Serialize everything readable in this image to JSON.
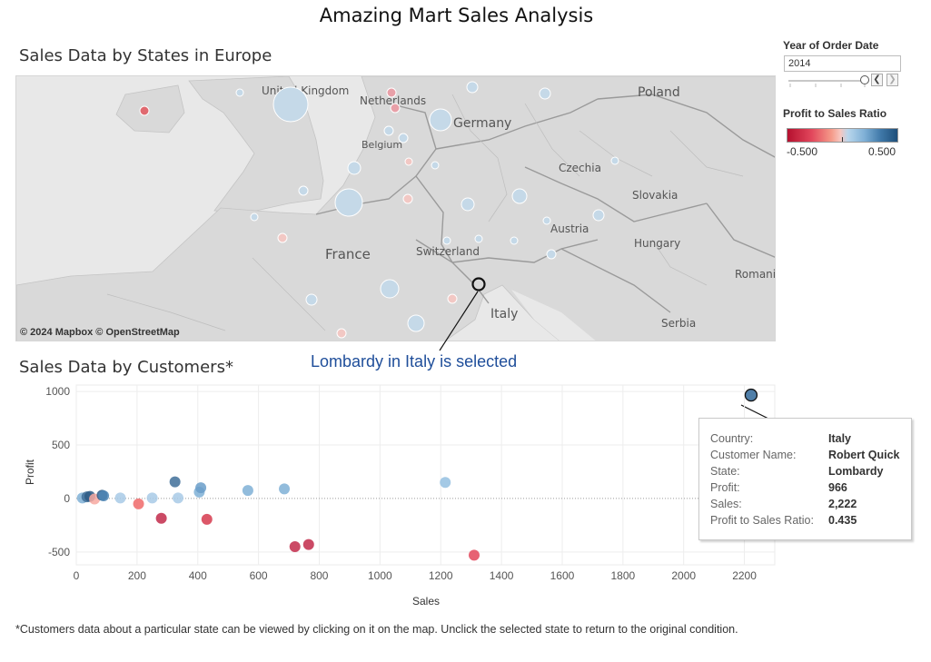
{
  "dashboard": {
    "title": "Amazing Mart Sales Analysis",
    "footnote": "*Customers data about a particular state can be viewed by clicking on it on the map. Unclick the selected state to return to the original condition."
  },
  "map": {
    "title": "Sales Data by States in Europe",
    "attribution": "© 2024 Mapbox  © OpenStreetMap",
    "labels": [
      "United Kingdom",
      "Netherlands",
      "Belgium",
      "Germany",
      "Poland",
      "Czechia",
      "Slovakia",
      "France",
      "Switzerland",
      "Austria",
      "Hungary",
      "Italy",
      "Serbia",
      "Romania"
    ],
    "selected_state": "Lombardy"
  },
  "annotation": "Lombardy in Italy is selected",
  "filters": {
    "year_label": "Year of Order Date",
    "year_value": "2014",
    "prev_icon": "chevron-left-icon",
    "next_icon": "chevron-right-icon"
  },
  "legend": {
    "title": "Profit to Sales Ratio",
    "min": "-0.500",
    "max": "0.500",
    "colors": {
      "negative": "#b5102f",
      "neutral": "#dfe8ef",
      "positive": "#1e4f7a"
    }
  },
  "customers": {
    "title": "Sales Data by Customers*"
  },
  "tooltip": {
    "rows": [
      {
        "key": "Country:",
        "value": "Italy"
      },
      {
        "key": "Customer Name:",
        "value": "Robert Quick"
      },
      {
        "key": "State:",
        "value": "Lombardy"
      },
      {
        "key": "Profit:",
        "value": "966"
      },
      {
        "key": "Sales:",
        "value": "2,222"
      },
      {
        "key": "Profit to Sales Ratio:",
        "value": "0.435"
      }
    ]
  },
  "chart_data": {
    "type": "scatter",
    "xlabel": "Sales",
    "ylabel": "Profit",
    "xlim": [
      0,
      2300
    ],
    "ylim": [
      -620,
      1060
    ],
    "xticks": [
      0,
      200,
      400,
      600,
      800,
      1000,
      1200,
      1400,
      1600,
      1800,
      2000,
      2200
    ],
    "yticks": [
      -500,
      0,
      500,
      1000
    ],
    "grid": true,
    "points": [
      {
        "x": 20,
        "y": 5,
        "color": "#7fb0d6"
      },
      {
        "x": 35,
        "y": 15,
        "color": "#3f6f99"
      },
      {
        "x": 45,
        "y": 20,
        "color": "#2d5b85"
      },
      {
        "x": 60,
        "y": -5,
        "color": "#f7a8a0"
      },
      {
        "x": 85,
        "y": 30,
        "color": "#2d5b85"
      },
      {
        "x": 90,
        "y": 25,
        "color": "#4f86b5"
      },
      {
        "x": 145,
        "y": 5,
        "color": "#a8cae6"
      },
      {
        "x": 205,
        "y": -50,
        "color": "#f06a6a"
      },
      {
        "x": 250,
        "y": 5,
        "color": "#a8cae6"
      },
      {
        "x": 280,
        "y": -185,
        "color": "#c22a4a"
      },
      {
        "x": 325,
        "y": 155,
        "color": "#3f6f99"
      },
      {
        "x": 335,
        "y": 5,
        "color": "#a8cae6"
      },
      {
        "x": 405,
        "y": 60,
        "color": "#7fb0d6"
      },
      {
        "x": 410,
        "y": 100,
        "color": "#6a9ec9"
      },
      {
        "x": 430,
        "y": -195,
        "color": "#d63a4e"
      },
      {
        "x": 565,
        "y": 75,
        "color": "#7fb0d6"
      },
      {
        "x": 685,
        "y": 90,
        "color": "#7fb0d6"
      },
      {
        "x": 720,
        "y": -450,
        "color": "#c22a4a"
      },
      {
        "x": 765,
        "y": -430,
        "color": "#c22a4a"
      },
      {
        "x": 1215,
        "y": 150,
        "color": "#94bfe0"
      },
      {
        "x": 1310,
        "y": -530,
        "color": "#e3475a"
      },
      {
        "x": 2222,
        "y": 966,
        "color": "#4f7ea8"
      }
    ],
    "selected_index": 21
  }
}
